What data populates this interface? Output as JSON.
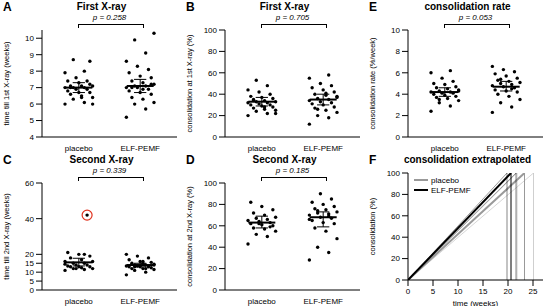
{
  "chart_data": [
    {
      "panel": "A",
      "type": "scatter",
      "title": "First X-ray",
      "y_label": "time till 1st X-ray (weeks)",
      "categories": [
        "placebo",
        "ELF-PEMF"
      ],
      "color": "#000000",
      "values": [
        [
          6.0,
          6.1,
          6.3,
          6.4,
          6.5,
          6.6,
          6.7,
          6.7,
          6.8,
          6.9,
          6.9,
          7.0,
          7.0,
          7.0,
          7.1,
          7.1,
          7.1,
          7.2,
          7.3,
          7.4,
          7.4,
          7.6,
          7.9,
          8.0,
          8.7,
          6.0,
          6.4,
          7.0,
          8.6
        ],
        [
          5.2,
          5.7,
          6.0,
          6.1,
          6.3,
          6.4,
          6.6,
          6.7,
          6.8,
          6.9,
          7.0,
          7.0,
          7.1,
          7.1,
          7.2,
          7.3,
          7.4,
          7.6,
          7.7,
          7.9,
          8.1,
          8.3,
          8.6,
          9.1,
          9.9,
          10.3,
          6.9,
          7.0,
          7.2
        ]
      ],
      "mean": [
        7.0,
        7.1
      ],
      "ci": [
        [
          6.7,
          7.3
        ],
        [
          6.7,
          7.5
        ]
      ],
      "ylim": [
        4,
        10.5
      ],
      "yticks": [
        4,
        5,
        6,
        7,
        8,
        9,
        10
      ],
      "annotation": "p = 0.258"
    },
    {
      "panel": "B",
      "type": "scatter",
      "title": "First X-ray",
      "y_label": "consolidation at 1st X-ray (%)",
      "categories": [
        "placebo",
        "ELF-PEMF"
      ],
      "color": "#000000",
      "values": [
        [
          20,
          22,
          24,
          25,
          26,
          27,
          28,
          29,
          30,
          30,
          31,
          32,
          32,
          33,
          33,
          34,
          35,
          36,
          37,
          38,
          40,
          42,
          44,
          48,
          53,
          22,
          28,
          34
        ],
        [
          12,
          18,
          20,
          23,
          25,
          27,
          28,
          30,
          31,
          32,
          33,
          34,
          35,
          36,
          38,
          39,
          40,
          42,
          44,
          46,
          48,
          50,
          55,
          58,
          26,
          37,
          41
        ]
      ],
      "mean": [
        33,
        35
      ],
      "ci": [
        [
          29,
          37
        ],
        [
          30,
          40
        ]
      ],
      "ylim": [
        0,
        100
      ],
      "yticks": [
        0,
        20,
        40,
        60,
        80,
        100
      ],
      "annotation": "p = 0.705"
    },
    {
      "panel": "E",
      "type": "scatter",
      "title": "consolidation rate",
      "y_label": "consolidation rate (%/week)",
      "categories": [
        "placebo",
        "ELF-PEMF"
      ],
      "color": "#000000",
      "values": [
        [
          2.4,
          2.9,
          3.2,
          3.4,
          3.6,
          3.7,
          3.8,
          3.9,
          4.0,
          4.1,
          4.1,
          4.2,
          4.2,
          4.3,
          4.4,
          4.5,
          4.6,
          4.7,
          4.9,
          5.0,
          5.2,
          5.5,
          6.0,
          6.2,
          3.5,
          4.3
        ],
        [
          2.3,
          2.8,
          3.2,
          3.5,
          3.8,
          4.0,
          4.2,
          4.3,
          4.4,
          4.6,
          4.7,
          4.8,
          4.9,
          5.0,
          5.1,
          5.2,
          5.3,
          5.5,
          5.7,
          5.9,
          6.1,
          6.3,
          6.6,
          4.5,
          5.4
        ]
      ],
      "mean": [
        4.2,
        4.7
      ],
      "ci": [
        [
          3.8,
          4.6
        ],
        [
          4.3,
          5.2
        ]
      ],
      "ylim": [
        0,
        10
      ],
      "yticks": [
        0,
        2,
        4,
        6,
        8,
        10
      ],
      "annotation": "p = 0.053"
    },
    {
      "panel": "C",
      "type": "scatter",
      "title": "Second X-ray",
      "y_label": "time till 2nd X-ray (weeks)",
      "categories": [
        "placebo",
        "ELF-PEMF"
      ],
      "color": "#000000",
      "values": [
        [
          11,
          11.5,
          12,
          12,
          12.5,
          13,
          13,
          13,
          13.5,
          14,
          14,
          14.5,
          15,
          15,
          16,
          17,
          18,
          19,
          20,
          21,
          42,
          12,
          16,
          20
        ],
        [
          8.5,
          10,
          11,
          11.5,
          12,
          12,
          12.5,
          13,
          13,
          13,
          13.5,
          13.5,
          14,
          14,
          14.5,
          15,
          15,
          15.5,
          16,
          17,
          18,
          19,
          20,
          12,
          13,
          14,
          16
        ]
      ],
      "mean": [
        15.5,
        14
      ],
      "ci": [
        [
          13.5,
          17.8
        ],
        [
          13,
          15
        ]
      ],
      "ylim": [
        0,
        60
      ],
      "yticks": [
        0,
        5,
        10,
        15,
        20,
        40,
        60
      ],
      "annotation": "p = 0.339",
      "circled": {
        "values": [
          [
            42
          ],
          []
        ],
        "color": "#e0321e"
      }
    },
    {
      "panel": "D",
      "type": "scatter",
      "title": "Second X-ray",
      "y_label": "consolidation at 2nd X-ray (%)",
      "categories": [
        "placebo",
        "ELF-PEMF"
      ],
      "color": "#000000",
      "values": [
        [
          43,
          50,
          52,
          55,
          57,
          58,
          60,
          61,
          62,
          63,
          64,
          65,
          66,
          67,
          68,
          70,
          72,
          75,
          78,
          82,
          59,
          62
        ],
        [
          28,
          35,
          40,
          48,
          55,
          58,
          62,
          63,
          65,
          67,
          68,
          70,
          71,
          72,
          73,
          75,
          76,
          78,
          80,
          82,
          85,
          90,
          66,
          69,
          74
        ]
      ],
      "mean": [
        63,
        68
      ],
      "ci": [
        [
          58,
          69
        ],
        [
          59,
          73
        ]
      ],
      "ylim": [
        0,
        100
      ],
      "yticks": [
        0,
        20,
        40,
        60,
        80,
        100
      ],
      "annotation": "p = 0.185"
    },
    {
      "panel": "F",
      "type": "line",
      "title": "consolidation extrapolated",
      "x_label": "time (weeks)",
      "y_label": "consolidation (%)",
      "xlim": [
        0,
        27
      ],
      "xticks": [
        0,
        5,
        10,
        15,
        20,
        25
      ],
      "ylim": [
        0,
        100
      ],
      "yticks": [
        0,
        20,
        40,
        60,
        80,
        100
      ],
      "legend": "upper left",
      "series": [
        {
          "name": "placebo",
          "color": "#999999",
          "x": [
            0,
            23.3
          ],
          "values": [
            0,
            100
          ],
          "ci_x": [
            21.8,
            25.1
          ]
        },
        {
          "name": "ELF-PEMF",
          "color": "#000000",
          "x": [
            0,
            20.6
          ],
          "values": [
            0,
            100
          ],
          "ci_x": [
            19.8,
            21.6
          ]
        }
      ]
    }
  ]
}
